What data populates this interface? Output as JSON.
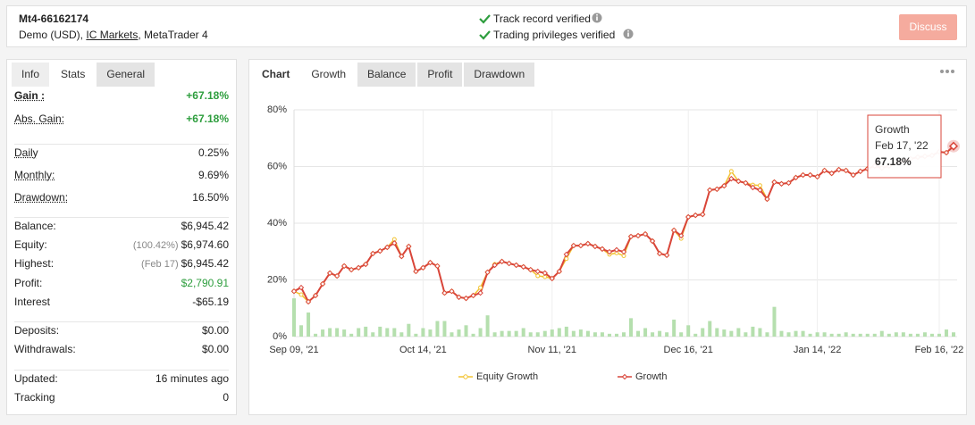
{
  "header": {
    "account": "Mt4-66162174",
    "details": [
      "Demo (USD),",
      "IC Markets",
      ", MetaTrader 4"
    ],
    "verifications": [
      "Track record verified",
      "Trading privileges verified"
    ],
    "button": "Discuss"
  },
  "stats": {
    "tabs": [
      "Info",
      "Stats",
      "General"
    ],
    "groups": [
      [
        {
          "label": "Gain :",
          "value": "+67.18%",
          "color": "#2e9e3e"
        },
        {
          "label": "Abs. Gain:",
          "value": "+67.18%",
          "color": "#2e9e3e"
        }
      ],
      [
        {
          "label": "Daily",
          "value": "0.25%"
        },
        {
          "label": "Monthly:",
          "value": "9.69%"
        },
        {
          "label": "Drawdown:",
          "value": "16.50%"
        }
      ],
      [
        {
          "label": "Balance:",
          "value": "$6,945.42"
        },
        {
          "label": "Equity:",
          "note": "(100.42%)",
          "value": "$6,974.60"
        },
        {
          "label": "Highest:",
          "note": "(Feb 17)",
          "value": "$6,945.42"
        },
        {
          "label": "Profit:",
          "value": "$2,790.91",
          "color": "#2e9e3e"
        },
        {
          "label": "Interest",
          "value": "-$65.19"
        }
      ],
      [
        {
          "label": "Deposits:",
          "value": "$0.00"
        },
        {
          "label": "Withdrawals:",
          "value": "$0.00"
        }
      ],
      [
        {
          "label": "Updated:",
          "value": "16 minutes ago"
        },
        {
          "label": "Tracking",
          "value": "0"
        }
      ]
    ]
  },
  "chart_tabs": [
    "Chart",
    "Growth",
    "Balance",
    "Profit",
    "Drawdown"
  ],
  "chart_data": {
    "type": "line",
    "categories": [
      "Sep 09, '21",
      null,
      null,
      null,
      null,
      null,
      null,
      null,
      null,
      null,
      null,
      null,
      null,
      null,
      null,
      null,
      null,
      null,
      "Oct 14, '21",
      null,
      null,
      null,
      null,
      null,
      null,
      null,
      null,
      null,
      null,
      null,
      null,
      null,
      null,
      null,
      null,
      null,
      "Nov 11, '21",
      null,
      null,
      null,
      null,
      null,
      null,
      null,
      null,
      null,
      null,
      null,
      null,
      null,
      null,
      null,
      null,
      null,
      null,
      "Dec 16, '21",
      null,
      null,
      null,
      null,
      null,
      null,
      null,
      null,
      null,
      null,
      null,
      null,
      null,
      null,
      null,
      null,
      null,
      "Jan 14, '22",
      null,
      null,
      null,
      null,
      null,
      null,
      null,
      null,
      null,
      null,
      null,
      null,
      null,
      null,
      null,
      null,
      "Feb 16, '22",
      null,
      null
    ],
    "series": [
      {
        "name": "Equity Growth",
        "color": "#f2c230",
        "values": [
          16,
          14.8,
          12.3,
          14.5,
          18.6,
          22.4,
          21.4,
          24.9,
          23.6,
          24.3,
          25.5,
          29.3,
          30.2,
          31.5,
          34.3,
          28.3,
          31.8,
          23,
          24.3,
          26.1,
          24.9,
          15.4,
          16,
          13.9,
          13.5,
          14.5,
          17.3,
          22.7,
          25.5,
          26.5,
          25.8,
          25.2,
          24.6,
          23.6,
          21.4,
          21.1,
          20.5,
          23,
          27.5,
          32.1,
          32.1,
          32.8,
          31.8,
          30.9,
          29,
          29.5,
          28.5,
          35.3,
          35.6,
          36.2,
          33.7,
          29.3,
          28.7,
          37.5,
          34.6,
          42.2,
          42.8,
          43.1,
          51.7,
          52,
          53.2,
          58.3,
          54.8,
          54.2,
          53.5,
          53.3,
          48.5,
          54.5,
          53.9,
          54.2,
          56.1,
          57,
          57,
          56.4,
          58.6,
          57.6,
          58.9,
          58.6,
          57,
          58.3,
          59.2,
          60.2,
          59.5,
          60.2,
          61.4,
          62,
          62.7,
          63.3,
          63.6,
          63.9,
          65.2,
          64.9,
          67.18
        ]
      },
      {
        "name": "Growth",
        "color": "#d9453a",
        "values": [
          16,
          17.3,
          12.3,
          14.5,
          18.6,
          22.4,
          21.4,
          24.9,
          23.6,
          24.3,
          25.5,
          29.3,
          30.2,
          31.5,
          33,
          28.3,
          31.8,
          23,
          24.3,
          26.1,
          24.9,
          15.4,
          16,
          13.9,
          13.5,
          14.5,
          15.4,
          22.7,
          25.2,
          26.5,
          25.8,
          25.2,
          24.6,
          23.6,
          23,
          22.4,
          20.5,
          23,
          29,
          32.1,
          32.1,
          32.8,
          31.8,
          30.9,
          29.9,
          30.6,
          29.9,
          35.3,
          35.6,
          36.2,
          33.7,
          29.3,
          28.7,
          37.5,
          35.6,
          42.2,
          42.8,
          43.1,
          51.7,
          52,
          53.2,
          55.7,
          54.8,
          54.2,
          52.6,
          51.7,
          48.5,
          54.5,
          53.9,
          54.2,
          56.1,
          57,
          57,
          56.4,
          58.6,
          57.6,
          58.9,
          58.6,
          57,
          58.3,
          59.2,
          60.2,
          59.5,
          60.2,
          61.4,
          62,
          62.7,
          63.3,
          63.6,
          63.9,
          65.2,
          64.9,
          67.18
        ]
      }
    ],
    "bars": {
      "color": "#b5dfae",
      "values": [
        13.5,
        4,
        8.5,
        1,
        2.5,
        3,
        3,
        2.5,
        1,
        3,
        3.5,
        1.5,
        3.5,
        3,
        3,
        1.5,
        4.5,
        1,
        3,
        2.5,
        5.5,
        5.5,
        1.5,
        2.5,
        4,
        1,
        3,
        7.5,
        1.5,
        2,
        2,
        2,
        3,
        1.5,
        1.5,
        2,
        2.5,
        3,
        3.5,
        2,
        2.5,
        2,
        1.5,
        1.5,
        1,
        1,
        1.5,
        6.5,
        2,
        3,
        1.5,
        2,
        1.5,
        6,
        1.5,
        4,
        1,
        3,
        5.5,
        3,
        2.5,
        2,
        3,
        1.5,
        3.5,
        3,
        1.5,
        10.5,
        2,
        1.5,
        2,
        2,
        1,
        1.5,
        1.5,
        1,
        1,
        1.5,
        1,
        1,
        1,
        1,
        2,
        1,
        1.5,
        1.5,
        1,
        1,
        1.5,
        1,
        1,
        2.5,
        1.5
      ]
    },
    "ylim": [
      0,
      80
    ],
    "yticks": [
      {
        "value": 0,
        "label": "0%"
      },
      {
        "value": 20,
        "label": "20%"
      },
      {
        "value": 40,
        "label": "40%"
      },
      {
        "value": 60,
        "label": "60%"
      },
      {
        "value": 80,
        "label": "80%"
      }
    ],
    "grid": true,
    "tooltip": {
      "date": "Feb 17, '22",
      "label": "67.18%"
    }
  }
}
